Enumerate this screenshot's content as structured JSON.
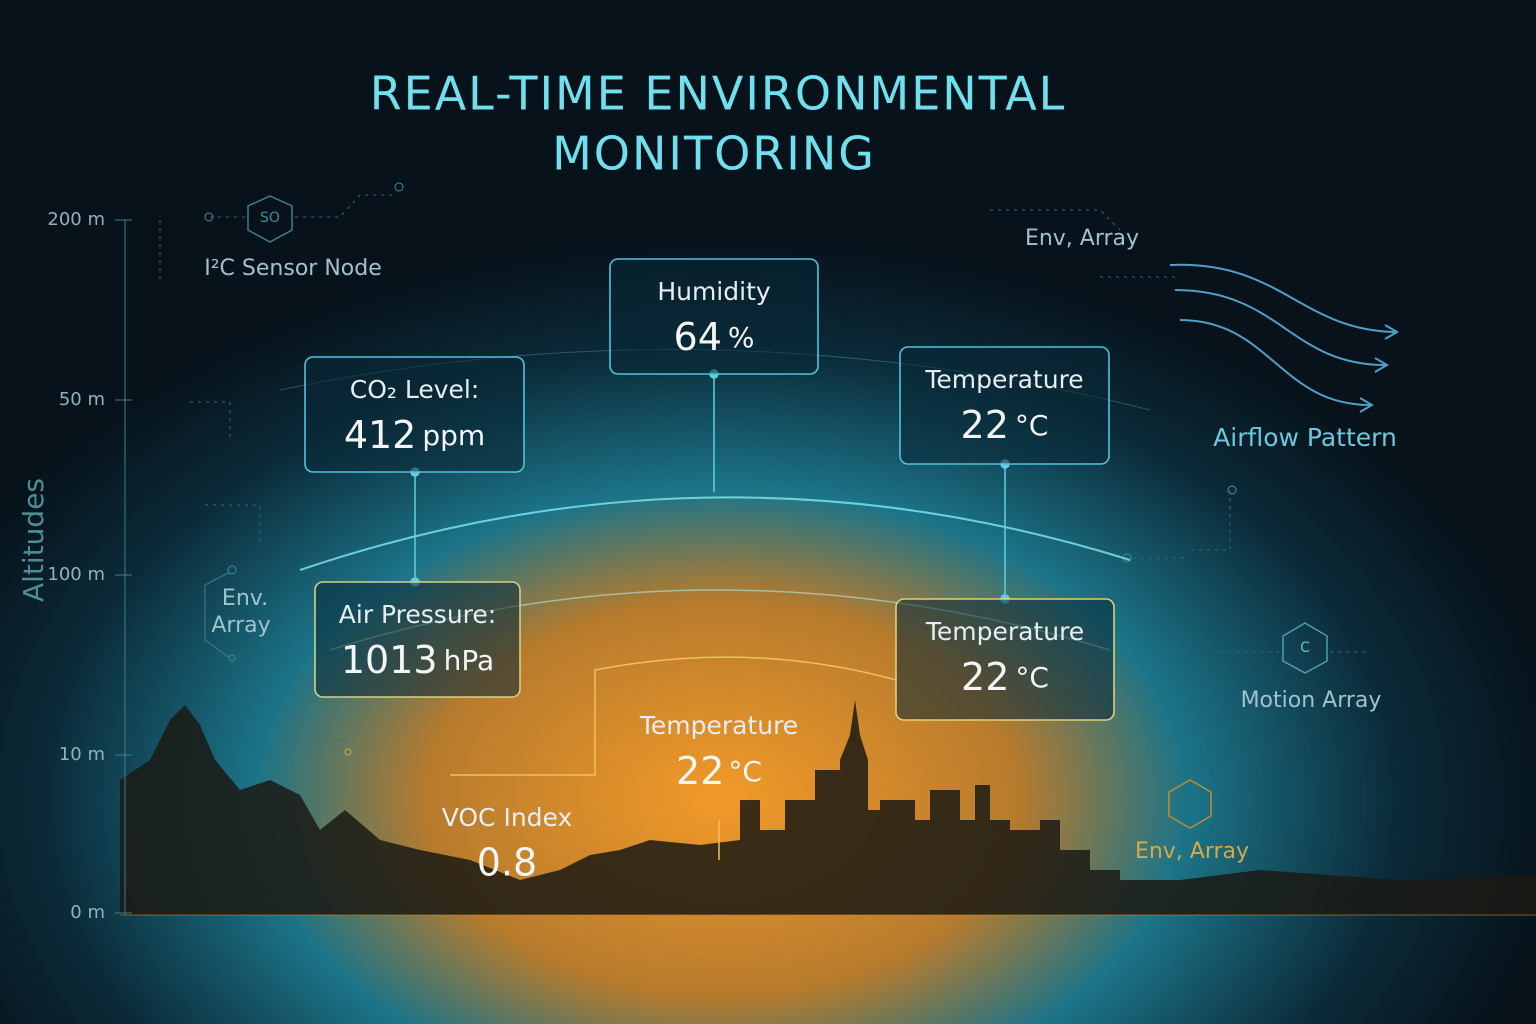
{
  "title": {
    "line1": "REAL-TIME ENVIRONMENTAL",
    "line2": "MONITORING"
  },
  "axis": {
    "label": "Altitudes",
    "ticks": [
      "200 m",
      "50 m",
      "100 m",
      "10 m",
      "0 m"
    ]
  },
  "cards": [
    {
      "label": "Humidity",
      "value": "64",
      "unit": "%"
    },
    {
      "label": "CO₂ Level:",
      "value": "412",
      "unit": "ppm"
    },
    {
      "label": "Temperature",
      "value": "22",
      "unit": "°C"
    },
    {
      "label": "Air Pressure:",
      "value": "1013",
      "unit": "hPa"
    },
    {
      "label": "Temperature",
      "value": "22",
      "unit": "°C"
    }
  ],
  "floating": [
    {
      "label": "Temperature",
      "value": "22",
      "unit": "°C"
    },
    {
      "label": "VOC Index",
      "value": "0.8"
    }
  ],
  "nodes": [
    {
      "icon": "SO",
      "label": "I²C Sensor Node"
    },
    {
      "lines": [
        "Env.",
        "Array"
      ]
    },
    {
      "label": "Env, Array"
    },
    {
      "label": "Airflow Pattern"
    },
    {
      "icon": "C",
      "label": "Motion Array"
    },
    {
      "label": "Env, Array"
    }
  ]
}
